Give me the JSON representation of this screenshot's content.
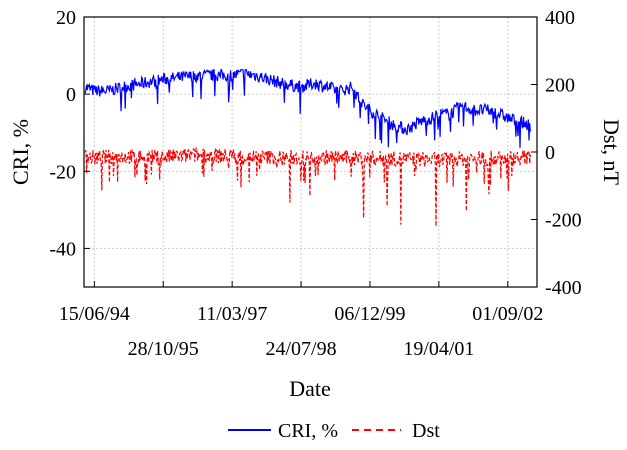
{
  "chart_data": {
    "type": "line",
    "xlabel": "Date",
    "ylabel_left": "CRI, %",
    "ylabel_right": "Dst, nT",
    "x_range": [
      "1994-04-01",
      "2003-04-01"
    ],
    "ylim_left": [
      -50,
      20
    ],
    "ylim_right": [
      -400,
      400
    ],
    "y_ticks_left": [
      20,
      0,
      -20,
      -40
    ],
    "y_ticks_right": [
      400,
      200,
      0,
      -200,
      -400
    ],
    "x_ticks_upper": [
      "15/06/94",
      "11/03/97",
      "06/12/99",
      "01/09/02"
    ],
    "x_ticks_lower": [
      "28/10/95",
      "24/07/98",
      "19/04/01"
    ],
    "x_tick_dates_upper": [
      "1994-06-15",
      "1997-03-11",
      "1999-12-06",
      "2002-09-01"
    ],
    "x_tick_dates_lower": [
      "1995-10-28",
      "1998-07-24",
      "2001-04-19"
    ],
    "grid": true,
    "legend_position": "bottom",
    "series": [
      {
        "name": "CRI, %",
        "axis": "left",
        "color": "#0000ff",
        "style": "solid",
        "points": [
          [
            "1994-04-10",
            2
          ],
          [
            "1994-06-15",
            1
          ],
          [
            "1994-10-01",
            1
          ],
          [
            "1995-01-01",
            2
          ],
          [
            "1995-06-01",
            3
          ],
          [
            "1995-10-28",
            4
          ],
          [
            "1996-03-01",
            4.5
          ],
          [
            "1996-08-01",
            5
          ],
          [
            "1997-01-01",
            5
          ],
          [
            "1997-03-11",
            5
          ],
          [
            "1997-06-01",
            5.5
          ],
          [
            "1997-09-01",
            5
          ],
          [
            "1997-12-01",
            4
          ],
          [
            "1998-03-01",
            3
          ],
          [
            "1998-07-24",
            2
          ],
          [
            "1998-11-01",
            3
          ],
          [
            "1999-02-01",
            2
          ],
          [
            "1999-05-01",
            1
          ],
          [
            "1999-08-01",
            2
          ],
          [
            "1999-10-01",
            -2
          ],
          [
            "1999-12-06",
            -4
          ],
          [
            "2000-03-01",
            -6
          ],
          [
            "2000-06-01",
            -8
          ],
          [
            "2000-09-01",
            -9
          ],
          [
            "2000-12-01",
            -7
          ],
          [
            "2001-03-01",
            -6
          ],
          [
            "2001-04-19",
            -5
          ],
          [
            "2001-07-01",
            -5
          ],
          [
            "2001-10-01",
            -3
          ],
          [
            "2002-01-01",
            -4
          ],
          [
            "2002-04-01",
            -4
          ],
          [
            "2002-07-01",
            -5
          ],
          [
            "2002-09-01",
            -6
          ],
          [
            "2002-12-01",
            -7
          ],
          [
            "2003-02-15",
            -8
          ]
        ]
      },
      {
        "name": "Dst",
        "axis": "right",
        "color": "#ff0000",
        "style": "dashed",
        "points": [
          [
            "1994-04-10",
            -15
          ],
          [
            "1994-06-15",
            -20
          ],
          [
            "1995-01-01",
            -15
          ],
          [
            "1995-10-28",
            -18
          ],
          [
            "1996-06-01",
            -12
          ],
          [
            "1997-03-11",
            -15
          ],
          [
            "1997-12-01",
            -18
          ],
          [
            "1998-07-24",
            -20
          ],
          [
            "1999-03-01",
            -18
          ],
          [
            "1999-12-06",
            -20
          ],
          [
            "2000-07-15",
            -22
          ],
          [
            "2001-04-19",
            -25
          ],
          [
            "2001-11-01",
            -22
          ],
          [
            "2002-09-01",
            -20
          ],
          [
            "2003-02-15",
            -18
          ]
        ],
        "storm_minima": [
          [
            "1994-10-01",
            -90
          ],
          [
            "1995-04-05",
            -75
          ],
          [
            "1997-05-15",
            -105
          ],
          [
            "1998-05-04",
            -150
          ],
          [
            "1998-09-25",
            -130
          ],
          [
            "1999-10-22",
            -195
          ],
          [
            "2000-04-07",
            -160
          ],
          [
            "2000-07-15",
            -215
          ],
          [
            "2001-03-31",
            -220
          ],
          [
            "2001-11-06",
            -175
          ],
          [
            "2002-04-17",
            -125
          ],
          [
            "2002-09-07",
            -115
          ]
        ]
      }
    ]
  },
  "legend": {
    "cri_label": "CRI, %",
    "dst_label": "Dst"
  }
}
